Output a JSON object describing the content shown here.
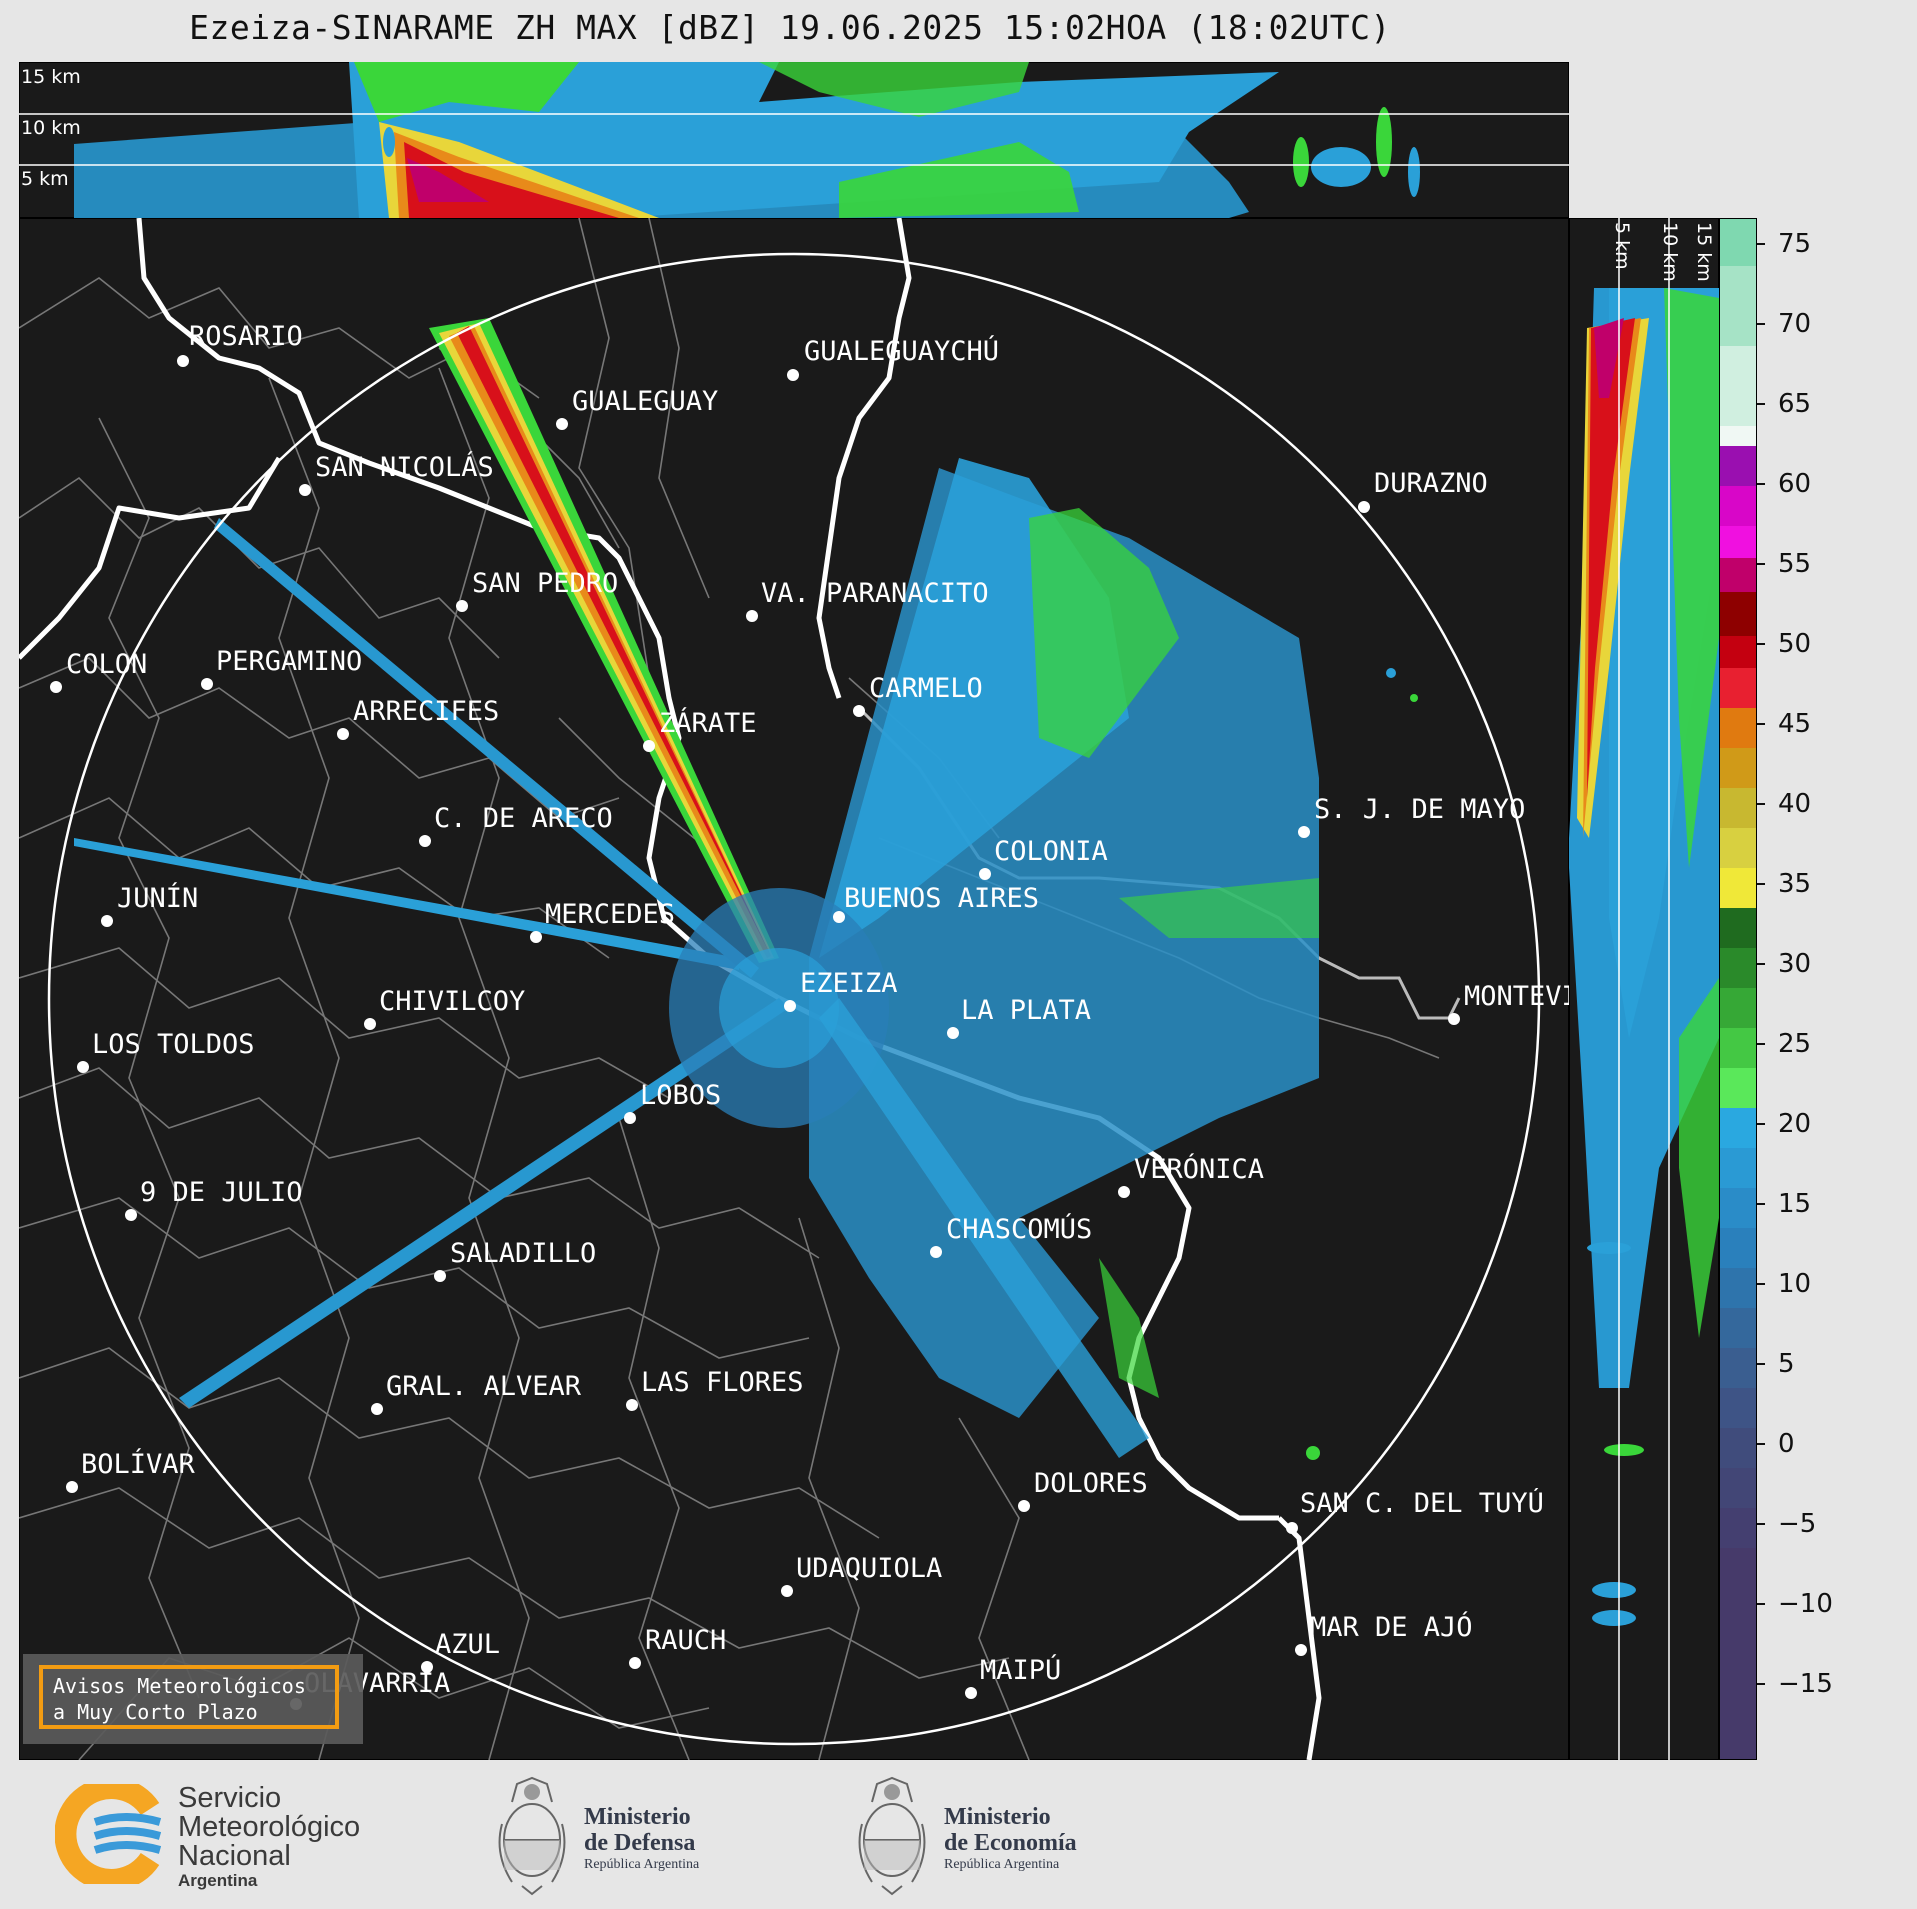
{
  "title": "Ezeiza-SINARAME ZH MAX [dBZ] 19.06.2025 15:02HOA (18:02UTC)",
  "top_panel": {
    "height_labels": [
      "15 km",
      "10 km",
      "5 km"
    ]
  },
  "right_panel": {
    "height_labels": [
      "5 km",
      "10 km",
      "15 km"
    ]
  },
  "colorbar": {
    "ticks": [
      "75",
      "70",
      "65",
      "60",
      "55",
      "50",
      "45",
      "40",
      "35",
      "30",
      "25",
      "20",
      "15",
      "10",
      "5",
      "0",
      "−5",
      "−10",
      "−15"
    ]
  },
  "cities": [
    {
      "name": "ROSARIO"
    },
    {
      "name": "GUALEGUAYCHÚ"
    },
    {
      "name": "GUALEGUAY"
    },
    {
      "name": "SAN NICOLÁS"
    },
    {
      "name": "DURAZNO"
    },
    {
      "name": "SAN PEDRO"
    },
    {
      "name": "VA. PARANACITO"
    },
    {
      "name": "COLON"
    },
    {
      "name": "PERGAMINO"
    },
    {
      "name": "CARMELO"
    },
    {
      "name": "ARRECIFES"
    },
    {
      "name": "ZÁRATE"
    },
    {
      "name": "C. DE ARECO"
    },
    {
      "name": "S. J. DE MAYO"
    },
    {
      "name": "COLONIA"
    },
    {
      "name": "JUNÍN"
    },
    {
      "name": "BUENOS AIRES"
    },
    {
      "name": "MERCEDES"
    },
    {
      "name": "EZEIZA"
    },
    {
      "name": "MONTEVIDEO"
    },
    {
      "name": "CHIVILCOY"
    },
    {
      "name": "LA PLATA"
    },
    {
      "name": "LOS TOLDOS"
    },
    {
      "name": "LOBOS"
    },
    {
      "name": "VERÓNICA"
    },
    {
      "name": "9 DE JULIO"
    },
    {
      "name": "CHASCOMÚS"
    },
    {
      "name": "SALADILLO"
    },
    {
      "name": "GRAL. ALVEAR"
    },
    {
      "name": "LAS FLORES"
    },
    {
      "name": "BOLÍVAR"
    },
    {
      "name": "DOLORES"
    },
    {
      "name": "SAN C. DEL TUYÚ"
    },
    {
      "name": "UDAQUIOLA"
    },
    {
      "name": "MAR DE AJÓ"
    },
    {
      "name": "AZUL"
    },
    {
      "name": "RAUCH"
    },
    {
      "name": "OLAVARRÍA"
    },
    {
      "name": "MAIPÚ"
    }
  ],
  "warning_box": {
    "line1": "Avisos Meteorológicos",
    "line2": "a Muy Corto Plazo"
  },
  "footer": {
    "smn": {
      "line1": "Servicio",
      "line2": "Meteorológico",
      "line3": "Nacional",
      "line4": "Argentina"
    },
    "defensa": {
      "line1": "Ministerio",
      "line2": "de Defensa",
      "line3": "República Argentina"
    },
    "economia": {
      "line1": "Ministerio",
      "line2": "de Economía",
      "line3": "República Argentina"
    }
  },
  "colors": {
    "background": "#1a1a1a",
    "range_ring": "#ffffff",
    "boundaries": "#7a7a7a",
    "coast": "#ffffff",
    "smn_orange": "#f5a623",
    "smn_blue": "#3a9ad9",
    "warning_border": "#f39c12"
  }
}
